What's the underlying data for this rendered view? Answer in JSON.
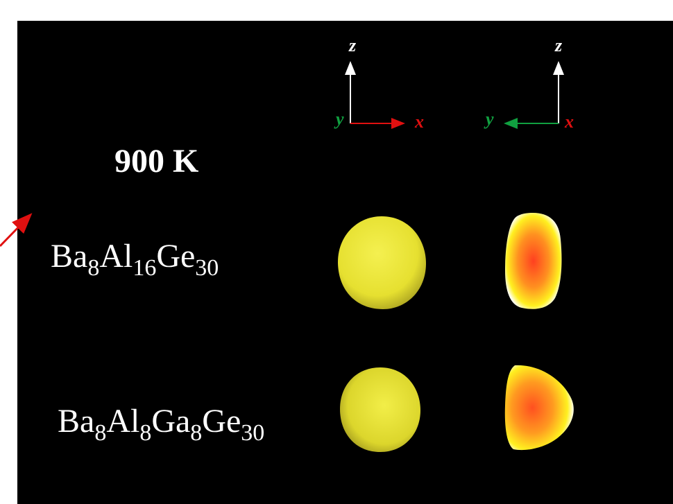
{
  "temperature": "900 K",
  "axes": [
    {
      "z": "z",
      "y": "y",
      "x": "x"
    },
    {
      "z": "z",
      "y": "y",
      "x": "x"
    }
  ],
  "compounds": [
    {
      "formula": [
        {
          "base": "Ba",
          "sub": "8"
        },
        {
          "base": "Al",
          "sub": "16"
        },
        {
          "base": "Ge",
          "sub": "30"
        }
      ]
    },
    {
      "formula": [
        {
          "base": "Ba",
          "sub": "8"
        },
        {
          "base": "Al",
          "sub": "8"
        },
        {
          "base": "Ga",
          "sub": "8"
        },
        {
          "base": "Ge",
          "sub": "30"
        }
      ]
    }
  ]
}
